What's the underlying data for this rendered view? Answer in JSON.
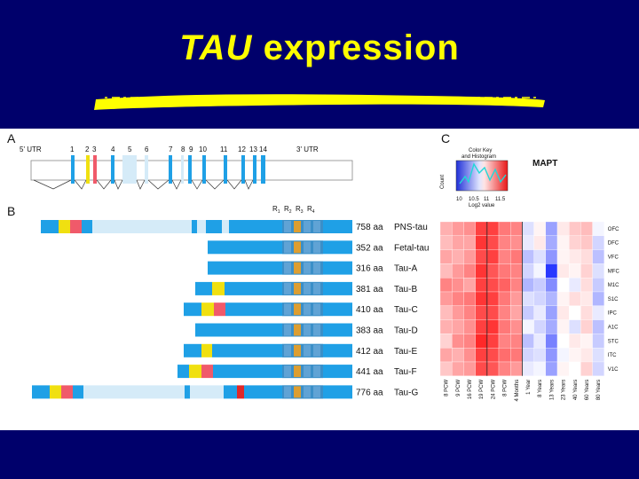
{
  "slide": {
    "title_italic": "TAU",
    "title_rest": " expression",
    "colors": {
      "background": "#00006b",
      "title": "#ffff00",
      "figure_bg": "#ffffff"
    }
  },
  "panel_a": {
    "label": "A",
    "utr5": "5' UTR",
    "utr3": "3' UTR",
    "exons": [
      "1",
      "2",
      "3",
      "4",
      "5",
      "6",
      "7",
      "8",
      "9",
      "10",
      "11",
      "12",
      "13",
      "14"
    ]
  },
  "panel_b": {
    "label": "B",
    "repeat_labels": [
      "R",
      "R",
      "R",
      "R"
    ],
    "repeat_subs": [
      "1",
      "2",
      "3",
      "4"
    ],
    "isoforms": [
      {
        "aa": "758 aa",
        "name": "PNS-tau"
      },
      {
        "aa": "352 aa",
        "name": "Fetal-tau"
      },
      {
        "aa": "316 aa",
        "name": "Tau-A"
      },
      {
        "aa": "381 aa",
        "name": "Tau-B"
      },
      {
        "aa": "410 aa",
        "name": "Tau-C"
      },
      {
        "aa": "383 aa",
        "name": "Tau-D"
      },
      {
        "aa": "412 aa",
        "name": "Tau-E"
      },
      {
        "aa": "441 aa",
        "name": "Tau-F"
      },
      {
        "aa": "776 aa",
        "name": "Tau-G"
      }
    ]
  },
  "panel_c": {
    "label": "C",
    "color_key_title": "Color Key\nand Histogram",
    "color_key_line1": "Color Key",
    "color_key_line2": "and Histogram",
    "hist_ylabel": "Count",
    "hist_xlabel": "Log2 value",
    "hist_ticks": [
      "10",
      "10.5",
      "11",
      "11.5"
    ],
    "gene": "MAPT",
    "regions": [
      "OFC",
      "DFC",
      "VFC",
      "MFC",
      "M1C",
      "S1C",
      "IPC",
      "A1C",
      "STC",
      "ITC",
      "V1C"
    ],
    "ages": [
      "8 PCW",
      "9 PCW",
      "16 PCW",
      "19 PCW",
      "24 PCW",
      "8 PCW ",
      "4 Months",
      "1 Year",
      "8 Years",
      "13 Years",
      "23 Years",
      "40 Years",
      "60 Years",
      "80 Years"
    ],
    "age_labels": [
      "8 PCW",
      "9 PCW",
      "16 PCW",
      "19 PCW",
      "24 PCW",
      "8 PCW",
      "4 Months",
      "1 Year",
      "8 Years",
      "13 Years",
      "23 Years",
      "40 Years",
      "60 Years",
      "80 Years"
    ],
    "heatmap": [
      [
        0.35,
        0.45,
        0.5,
        0.85,
        0.85,
        0.6,
        0.55,
        -0.15,
        0.05,
        -0.45,
        0.1,
        0.25,
        0.3,
        -0.05
      ],
      [
        0.3,
        0.4,
        0.4,
        0.9,
        0.8,
        0.55,
        0.5,
        -0.1,
        0.1,
        -0.4,
        0.05,
        0.2,
        0.25,
        -0.2
      ],
      [
        0.4,
        0.35,
        0.45,
        0.8,
        0.85,
        0.55,
        0.6,
        -0.3,
        -0.15,
        -0.5,
        0.05,
        0.1,
        0.15,
        -0.3
      ],
      [
        0.3,
        0.45,
        0.55,
        0.9,
        0.75,
        0.6,
        0.55,
        -0.2,
        -0.05,
        -0.95,
        0.1,
        0.05,
        0.2,
        -0.15
      ],
      [
        0.55,
        0.5,
        0.4,
        0.85,
        0.8,
        0.7,
        0.55,
        -0.35,
        -0.25,
        -0.55,
        0.0,
        -0.1,
        0.15,
        -0.25
      ],
      [
        0.45,
        0.55,
        0.6,
        0.9,
        0.85,
        0.6,
        0.45,
        -0.15,
        -0.2,
        -0.35,
        0.05,
        0.15,
        0.1,
        -0.35
      ],
      [
        0.3,
        0.45,
        0.55,
        0.8,
        0.8,
        0.55,
        0.4,
        -0.25,
        -0.1,
        -0.45,
        0.1,
        0.0,
        0.15,
        -0.1
      ],
      [
        0.35,
        0.4,
        0.5,
        0.85,
        0.9,
        0.6,
        0.5,
        -0.05,
        -0.2,
        -0.4,
        0.05,
        -0.15,
        0.2,
        -0.3
      ],
      [
        0.2,
        0.5,
        0.55,
        0.95,
        0.85,
        0.55,
        0.55,
        -0.3,
        -0.1,
        -0.6,
        0.0,
        0.1,
        0.05,
        -0.25
      ],
      [
        0.4,
        0.35,
        0.5,
        0.85,
        0.8,
        0.65,
        0.6,
        -0.2,
        -0.15,
        -0.5,
        -0.05,
        0.05,
        0.1,
        -0.15
      ],
      [
        0.25,
        0.4,
        0.45,
        0.8,
        0.75,
        0.55,
        0.45,
        -0.1,
        -0.05,
        -0.45,
        0.05,
        0.0,
        0.2,
        -0.2
      ]
    ]
  }
}
